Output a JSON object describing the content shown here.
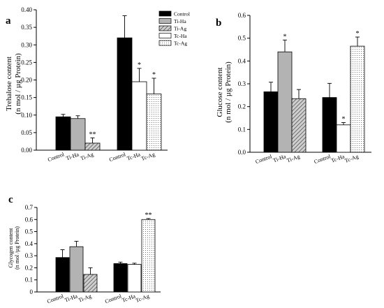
{
  "colors": {
    "Control": "#000000",
    "Ti-Ha": "#b3b3b3",
    "Ti-Ag": "hatch",
    "Tc-Ha": "#ffffff",
    "Tc-Ag": "dots"
  },
  "legend": [
    "Control",
    "Ti-Ha",
    "Ti-Ag",
    "Tc-Ha",
    "Tc-Ag"
  ],
  "chart_data": [
    {
      "type": "bar",
      "panel": "a",
      "ylabel_lines": [
        "Trehalose content",
        "(n mol / µg Protein)"
      ],
      "ylim": [
        0,
        0.4
      ],
      "yticks": [
        "0.00",
        "0.05",
        "0.10",
        "0.15",
        "0.20",
        "0.25",
        "0.30",
        "0.35",
        "0.40"
      ],
      "yticks_values": [
        0,
        0.05,
        0.1,
        0.15,
        0.2,
        0.25,
        0.3,
        0.35,
        0.4
      ],
      "groups": [
        {
          "bars": [
            {
              "label": "Control",
              "value": 0.095,
              "err": 0.007,
              "style": "Control",
              "sig": ""
            },
            {
              "label": "Ti-Ha",
              "value": 0.09,
              "err": 0.008,
              "style": "Ti-Ha",
              "sig": ""
            },
            {
              "label": "Ti-Ag",
              "value": 0.02,
              "err": 0.015,
              "style": "Ti-Ag",
              "sig": "**"
            }
          ]
        },
        {
          "bars": [
            {
              "label": "Control",
              "value": 0.32,
              "err": 0.063,
              "style": "Control",
              "sig": ""
            },
            {
              "label": "Tc-Ha",
              "value": 0.195,
              "err": 0.038,
              "style": "Tc-Ha",
              "sig": "*"
            },
            {
              "label": "Tc-Ag",
              "value": 0.16,
              "err": 0.045,
              "style": "Tc-Ag",
              "sig": "*"
            }
          ]
        }
      ]
    },
    {
      "type": "bar",
      "panel": "b",
      "ylabel_lines": [
        "Glucose content",
        "(n mol / µg Protein)"
      ],
      "ylim": [
        0,
        0.6
      ],
      "yticks": [
        "0.0",
        "0.1",
        "0.2",
        "0.3",
        "0.4",
        "0.5",
        "0.6"
      ],
      "yticks_values": [
        0,
        0.1,
        0.2,
        0.3,
        0.4,
        0.5,
        0.6
      ],
      "groups": [
        {
          "bars": [
            {
              "label": "Control",
              "value": 0.265,
              "err": 0.042,
              "style": "Control",
              "sig": ""
            },
            {
              "label": "Ti-Ha",
              "value": 0.44,
              "err": 0.052,
              "style": "Ti-Ha",
              "sig": "*"
            },
            {
              "label": "Ti-Ag",
              "value": 0.235,
              "err": 0.04,
              "style": "Ti-Ag",
              "sig": ""
            }
          ]
        },
        {
          "bars": [
            {
              "label": "Control",
              "value": 0.24,
              "err": 0.062,
              "style": "Control",
              "sig": ""
            },
            {
              "label": "Tc-Ha",
              "value": 0.12,
              "err": 0.01,
              "style": "Tc-Ha",
              "sig": "*"
            },
            {
              "label": "Tc-Ag",
              "value": 0.465,
              "err": 0.04,
              "style": "Tc-Ag",
              "sig": "*"
            }
          ]
        }
      ]
    },
    {
      "type": "bar",
      "panel": "c",
      "ylabel_lines": [
        "Glycogen content",
        "(n mol /µg Protein)"
      ],
      "ylim": [
        0,
        0.7
      ],
      "yticks": [
        "0",
        "0.1",
        "0.2",
        "0.3",
        "0.4",
        "0.5",
        "0.6",
        "0.7"
      ],
      "yticks_values": [
        0,
        0.1,
        0.2,
        0.3,
        0.4,
        0.5,
        0.6,
        0.7
      ],
      "groups": [
        {
          "bars": [
            {
              "label": "Control",
              "value": 0.285,
              "err": 0.065,
              "style": "Control",
              "sig": ""
            },
            {
              "label": "Ti-Ha",
              "value": 0.375,
              "err": 0.045,
              "style": "Ti-Ha",
              "sig": ""
            },
            {
              "label": "Ti-Ag",
              "value": 0.145,
              "err": 0.055,
              "style": "Ti-Ag",
              "sig": ""
            }
          ]
        },
        {
          "bars": [
            {
              "label": "Control",
              "value": 0.235,
              "err": 0.012,
              "style": "Control",
              "sig": ""
            },
            {
              "label": "Tc-Ha",
              "value": 0.228,
              "err": 0.01,
              "style": "Tc-Ha",
              "sig": ""
            },
            {
              "label": "Tc-Ag",
              "value": 0.6,
              "err": 0.008,
              "style": "Tc-Ag",
              "sig": "**"
            }
          ]
        }
      ]
    }
  ]
}
